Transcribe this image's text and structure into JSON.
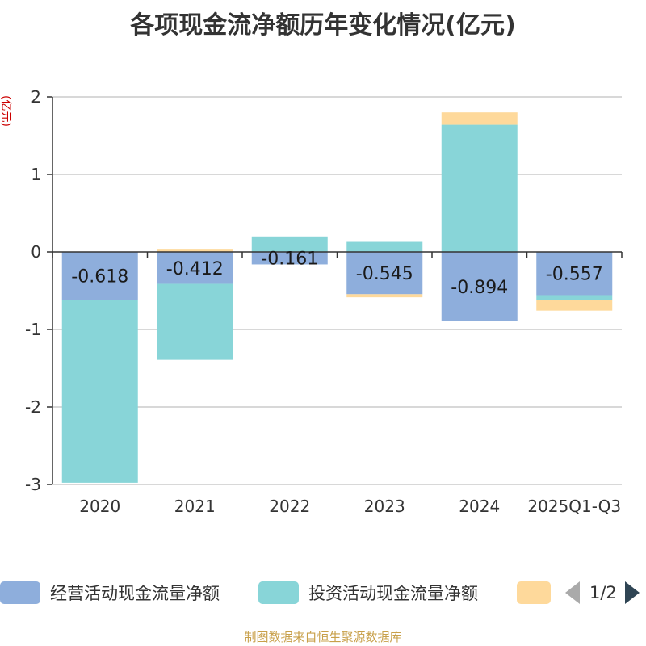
{
  "chart_data": {
    "type": "bar",
    "stacked": true,
    "title": "各项现金流净额历年变化情况(亿元)",
    "ylabel": "(亿元)",
    "xlabel": "",
    "categories": [
      "2020",
      "2021",
      "2022",
      "2023",
      "2024",
      "2025Q1-Q3"
    ],
    "ylim": [
      -3,
      2
    ],
    "yticks": [
      2,
      1,
      0,
      -1,
      -2,
      -3
    ],
    "grid": true,
    "legend_position": "bottom",
    "series": [
      {
        "name": "经营活动现金流量净额",
        "color": "#8eaedc",
        "values": [
          -0.618,
          -0.412,
          -0.161,
          -0.545,
          -0.894,
          -0.557
        ],
        "show_labels": true
      },
      {
        "name": "投资活动现金流量净额",
        "color": "#88d5d8",
        "values": [
          -2.36,
          -0.98,
          0.2,
          0.13,
          1.64,
          -0.06
        ],
        "show_labels": false
      },
      {
        "name": "",
        "color": "#fed99b",
        "values": [
          0.0,
          0.04,
          0.0,
          -0.04,
          0.16,
          -0.14
        ],
        "show_labels": false
      }
    ]
  },
  "legend": {
    "page_text": "1/2"
  },
  "source": "制图数据来自恒生聚源数据库"
}
